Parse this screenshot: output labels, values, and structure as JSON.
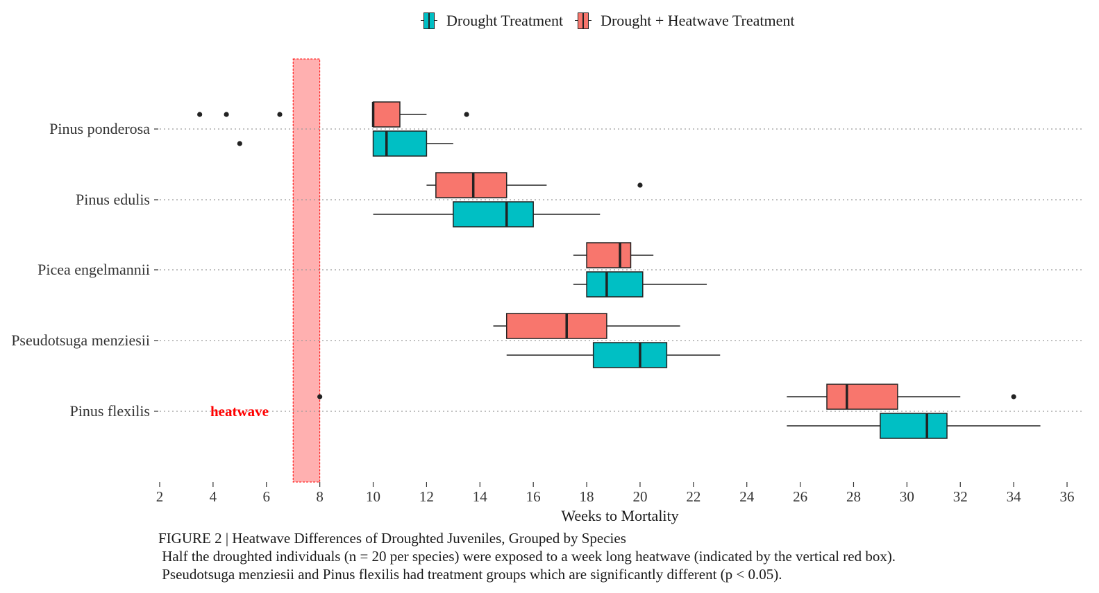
{
  "colors": {
    "drought": "#00BFC4",
    "heatwave_treatment": "#F8766D",
    "heatwave_band": "#FFB0B0",
    "heatwave_text": "#FF0000"
  },
  "legend": {
    "items": [
      {
        "label": "Drought Treatment",
        "color": "#00BFC4"
      },
      {
        "label": "Drought + Heatwave Treatment",
        "color": "#F8766D"
      }
    ]
  },
  "caption": {
    "title": "FIGURE 2 | Heatwave Differences of Droughted Juveniles, Grouped by Species",
    "line1": " Half the droughted individuals (n = 20 per species) were exposed to a week long heatwave (indicated by the vertical red box).",
    "line2": " Pseudotsuga menziesii and Pinus flexilis had treatment groups which are significantly different (p < 0.05)."
  },
  "chart_data": {
    "type": "boxplot",
    "xlabel": "Weeks to Mortality",
    "ylabel": "",
    "xlim": [
      2,
      36
    ],
    "xticks": [
      2,
      4,
      6,
      8,
      10,
      12,
      14,
      16,
      18,
      20,
      22,
      24,
      26,
      28,
      30,
      32,
      34,
      36
    ],
    "grid": "horizontal dotted",
    "legend_position": "top",
    "categories": [
      "Pinus ponderosa",
      "Pinus edulis",
      "Picea engelmannii",
      "Pseudotsuga menziesii",
      "Pinus flexilis"
    ],
    "annotation": {
      "text": "heatwave",
      "x_range": [
        7,
        8
      ],
      "label_category": "Pinus flexilis"
    },
    "series": [
      {
        "name": "Drought Treatment",
        "boxes": [
          {
            "category": "Pinus ponderosa",
            "whisker_low": 10,
            "q1": 10,
            "median": 10.5,
            "q3": 12,
            "whisker_high": 13,
            "outliers": [
              5
            ]
          },
          {
            "category": "Pinus edulis",
            "whisker_low": 10,
            "q1": 13,
            "median": 15,
            "q3": 16,
            "whisker_high": 18.5,
            "outliers": []
          },
          {
            "category": "Picea engelmannii",
            "whisker_low": 17.5,
            "q1": 18,
            "median": 18.75,
            "q3": 20.1,
            "whisker_high": 22.5,
            "outliers": []
          },
          {
            "category": "Pseudotsuga menziesii",
            "whisker_low": 15,
            "q1": 18.25,
            "median": 20,
            "q3": 21,
            "whisker_high": 23,
            "outliers": []
          },
          {
            "category": "Pinus flexilis",
            "whisker_low": 25.5,
            "q1": 29,
            "median": 30.75,
            "q3": 31.5,
            "whisker_high": 35,
            "outliers": []
          }
        ]
      },
      {
        "name": "Drought + Heatwave Treatment",
        "boxes": [
          {
            "category": "Pinus ponderosa",
            "whisker_low": 10,
            "q1": 10,
            "median": 10,
            "q3": 11,
            "whisker_high": 12,
            "outliers": [
              3.5,
              4.5,
              6.5,
              13.5
            ]
          },
          {
            "category": "Pinus edulis",
            "whisker_low": 12,
            "q1": 12.35,
            "median": 13.75,
            "q3": 15,
            "whisker_high": 16.5,
            "outliers": [
              20
            ]
          },
          {
            "category": "Picea engelmannii",
            "whisker_low": 17.5,
            "q1": 18,
            "median": 19.25,
            "q3": 19.65,
            "whisker_high": 20.5,
            "outliers": []
          },
          {
            "category": "Pseudotsuga menziesii",
            "whisker_low": 14.5,
            "q1": 15,
            "median": 17.25,
            "q3": 18.75,
            "whisker_high": 21.5,
            "outliers": []
          },
          {
            "category": "Pinus flexilis",
            "whisker_low": 25.5,
            "q1": 27,
            "median": 27.75,
            "q3": 29.65,
            "whisker_high": 32,
            "outliers": [
              8,
              34
            ]
          }
        ]
      }
    ]
  }
}
